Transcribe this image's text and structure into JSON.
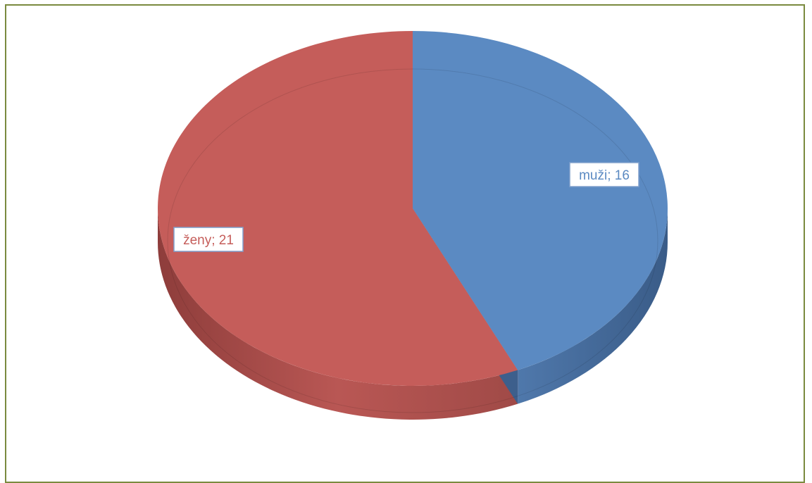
{
  "chart_data": {
    "type": "pie",
    "style": "3d",
    "title": "",
    "slices": [
      {
        "label": "muži",
        "value": 16,
        "color": "#5b8ac2",
        "side_color": "#3f6495",
        "label_text": "muži; 16"
      },
      {
        "label": "ženy",
        "value": 21,
        "color": "#c55d5a",
        "side_color": "#9e4644",
        "label_text": "ženy; 21"
      }
    ],
    "legend": "none",
    "frame_color": "#7a8a3e"
  }
}
